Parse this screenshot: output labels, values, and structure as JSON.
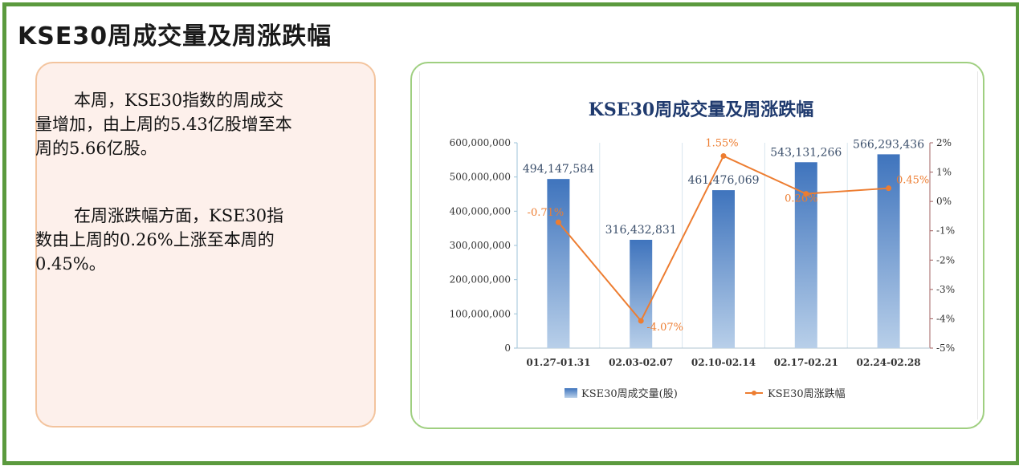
{
  "page": {
    "title": "KSE30周成交量及周涨跌幅"
  },
  "summary": {
    "paragraph1": "本周，KSE30指数的周成交量增加，由上周的5.43亿股增至本周的5.66亿股。",
    "paragraph2": "在周涨跌幅方面，KSE30指数由上周的0.26%上涨至本周的0.45%。"
  },
  "chart_data": {
    "type": "bar",
    "title": "KSE30周成交量及周涨跌幅",
    "categories": [
      "01.27-01.31",
      "02.03-02.07",
      "02.10-02.14",
      "02.17-02.21",
      "02.24-02.28"
    ],
    "series": [
      {
        "name": "KSE30周成交量(股)",
        "type": "bar",
        "axis": "left",
        "values": [
          494147584,
          316432831,
          461476069,
          543131266,
          566293436
        ],
        "labels": [
          "494,147,584",
          "316,432,831",
          "461,476,069",
          "543,131,266",
          "566,293,436"
        ],
        "color": "#4a7fc1"
      },
      {
        "name": "KSE30周涨跌幅",
        "type": "line",
        "axis": "right",
        "values": [
          -0.71,
          -4.07,
          1.55,
          0.26,
          0.45
        ],
        "labels": [
          "-0.71%",
          "-4.07%",
          "1.55%",
          "0.26%",
          "0.45%"
        ],
        "color": "#ed7d31"
      }
    ],
    "y_left": {
      "min": 0,
      "max": 600000000,
      "ticks": [
        0,
        100000000,
        200000000,
        300000000,
        400000000,
        500000000,
        600000000
      ],
      "tick_labels": [
        "0",
        "100,000,000",
        "200,000,000",
        "300,000,000",
        "400,000,000",
        "500,000,000",
        "600,000,000"
      ]
    },
    "y_right": {
      "min": -5,
      "max": 2,
      "ticks": [
        -5,
        -4,
        -3,
        -2,
        -1,
        0,
        1,
        2
      ],
      "tick_labels": [
        "-5%",
        "-4%",
        "-3%",
        "-2%",
        "-1%",
        "0%",
        "1%",
        "2%"
      ]
    },
    "legend_position": "bottom",
    "grid": "vertical"
  }
}
